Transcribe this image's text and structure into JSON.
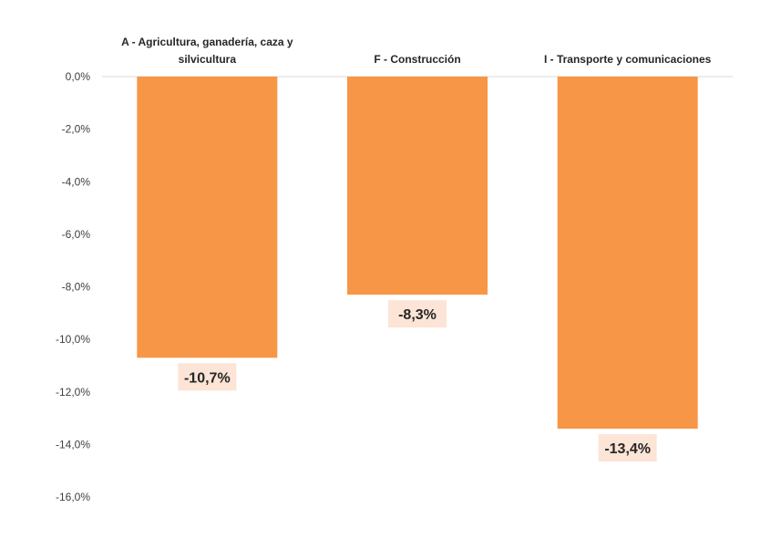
{
  "chart_data": {
    "type": "bar",
    "title": "",
    "xlabel": "",
    "ylabel": "",
    "categories": [
      [
        "A -  Agricultura, ganadería, caza y",
        "silvicultura"
      ],
      [
        "F - Construcción"
      ],
      [
        "I - Transporte y comunicaciones"
      ]
    ],
    "values": [
      -10.7,
      -8.3,
      -13.4
    ],
    "value_labels": [
      "-10,7%",
      "-8,3%",
      "-13,4%"
    ],
    "yticks": [
      0,
      -2,
      -4,
      -6,
      -8,
      -10,
      -12,
      -14,
      -16
    ],
    "ytick_labels": [
      "0,0%",
      "-2,0%",
      "-4,0%",
      "-6,0%",
      "-8,0%",
      "-10,0%",
      "-12,0%",
      "-14,0%",
      "-16,0%"
    ],
    "ylim": [
      -16,
      0
    ],
    "grid": false,
    "legend": "none",
    "colors": {
      "bar": "#F79646",
      "label_bg": "#FCE4D6",
      "axis_line": "#D9D9D9",
      "text": "#262626"
    }
  }
}
